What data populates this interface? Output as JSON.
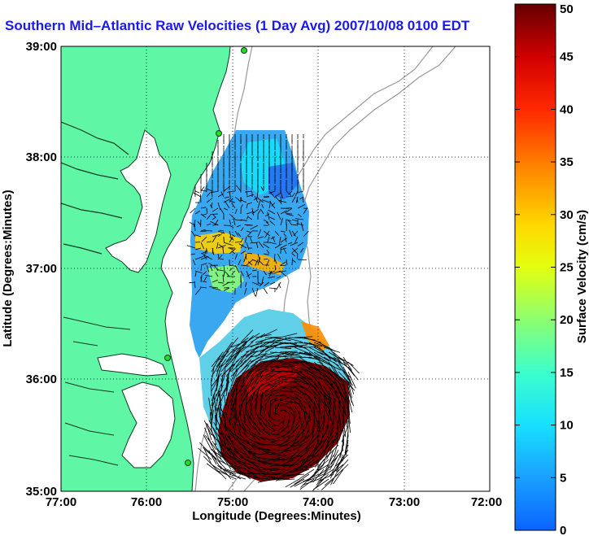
{
  "figure": {
    "title": "Southern Mid–Atlantic Raw Velocities (1 Day Avg) 2007/10/08 0100 EDT"
  },
  "chart_data": {
    "type": "heatmap",
    "title": "Southern Mid–Atlantic Raw Velocities (1 Day Avg) 2007/10/08 0100 EDT",
    "xlabel": "Longitude (Degrees:Minutes)",
    "ylabel": "Latitude (Degrees:Minutes)",
    "xlim": [
      -77,
      -72
    ],
    "ylim": [
      35,
      39
    ],
    "x_ticks": [
      "77:00",
      "76:00",
      "75:00",
      "74:00",
      "73:00",
      "72:00"
    ],
    "y_ticks": [
      "39:00",
      "38:00",
      "37:00",
      "36:00",
      "35:00"
    ],
    "grid": "dotted",
    "colorbar": {
      "label": "Surface Velocity (cm/s)",
      "range": [
        0,
        50
      ],
      "ticks": [
        "50",
        "45",
        "40",
        "35",
        "30",
        "25",
        "20",
        "15",
        "10",
        "5",
        "0"
      ],
      "colors": [
        "#0a64ff",
        "#17d2ff",
        "#30ffd8",
        "#5ff6a6",
        "#c8ff30",
        "#fff500",
        "#ffaa00",
        "#ff5a00",
        "#ff1400",
        "#d00000",
        "#640000"
      ]
    },
    "land_color": "#5ff6a6",
    "station_color": "#22dd22",
    "contour_color": "#999999"
  }
}
